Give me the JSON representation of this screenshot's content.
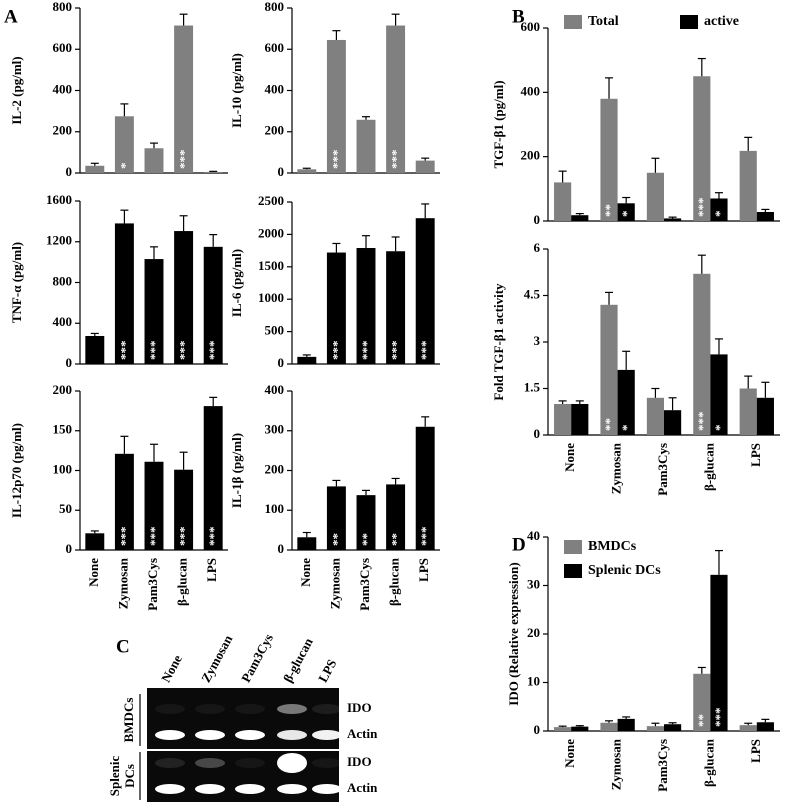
{
  "panel_labels": [
    "A",
    "B",
    "C",
    "D"
  ],
  "chart_data": [
    {
      "type": "bar",
      "ylabel": "IL-2 (pg/ml)",
      "categories": [
        null,
        null,
        null,
        null,
        null
      ],
      "ylim": [
        0,
        800
      ],
      "yticks": [
        0,
        200,
        400,
        600,
        800
      ],
      "series": [
        {
          "color": "#808080",
          "values": [
            35,
            275,
            120,
            715,
            5
          ],
          "errors": [
            12,
            60,
            25,
            55,
            3
          ],
          "stars": [
            null,
            "*",
            null,
            "***",
            null
          ]
        }
      ]
    },
    {
      "type": "bar",
      "ylabel": "IL-10 (pg/ml)",
      "categories": [
        null,
        null,
        null,
        null,
        null
      ],
      "ylim": [
        0,
        800
      ],
      "yticks": [
        0,
        200,
        400,
        600,
        800
      ],
      "series": [
        {
          "color": "#808080",
          "values": [
            18,
            645,
            258,
            715,
            60
          ],
          "errors": [
            5,
            45,
            15,
            55,
            12
          ],
          "stars": [
            null,
            "***",
            null,
            "***",
            null
          ]
        }
      ]
    },
    {
      "type": "bar",
      "ylabel": "TNF-α (pg/ml)",
      "categories": [
        null,
        null,
        null,
        null,
        null
      ],
      "ylim": [
        0,
        1600
      ],
      "yticks": [
        0,
        400,
        800,
        1200,
        1600
      ],
      "series": [
        {
          "color": "#000000",
          "values": [
            275,
            1380,
            1030,
            1305,
            1150
          ],
          "errors": [
            25,
            130,
            120,
            150,
            120
          ],
          "stars": [
            null,
            "***",
            "***",
            "***",
            "***"
          ]
        }
      ]
    },
    {
      "type": "bar",
      "ylabel": "IL-6 (pg/ml)",
      "categories": [
        null,
        null,
        null,
        null,
        null
      ],
      "ylim": [
        0,
        2500
      ],
      "yticks": [
        0,
        500,
        1000,
        1500,
        2000,
        2500
      ],
      "series": [
        {
          "color": "#000000",
          "values": [
            110,
            1720,
            1790,
            1740,
            2250
          ],
          "errors": [
            30,
            140,
            190,
            220,
            220
          ],
          "stars": [
            null,
            "***",
            "***",
            "***",
            "***"
          ]
        }
      ]
    },
    {
      "type": "bar",
      "ylabel": "IL-12p70 (pg/ml)",
      "categories": [
        "None",
        "Zymosan",
        "Pam3Cys",
        "β-glucan",
        "LPS"
      ],
      "ylim": [
        0,
        200
      ],
      "yticks": [
        0,
        50,
        100,
        150,
        200
      ],
      "series": [
        {
          "color": "#000000",
          "values": [
            21,
            121,
            111,
            101,
            181
          ],
          "errors": [
            3,
            22,
            22,
            22,
            11
          ],
          "stars": [
            null,
            "***",
            "***",
            "***",
            "***"
          ]
        }
      ]
    },
    {
      "type": "bar",
      "ylabel": "IL-1β (pg/ml)",
      "categories": [
        "None",
        "Zymosan",
        "Pam3Cys",
        "β-glucan",
        "LPS"
      ],
      "ylim": [
        0,
        400
      ],
      "yticks": [
        0,
        100,
        200,
        300,
        400
      ],
      "series": [
        {
          "color": "#000000",
          "values": [
            32,
            160,
            138,
            165,
            310
          ],
          "errors": [
            12,
            15,
            12,
            15,
            25
          ],
          "stars": [
            null,
            "**",
            "**",
            "**",
            "***"
          ]
        }
      ]
    },
    {
      "type": "bar",
      "ylabel": "TGF-β1 (pg/ml)",
      "categories": [
        null,
        null,
        null,
        null,
        null
      ],
      "ylim": [
        0,
        600
      ],
      "yticks": [
        0,
        200,
        400,
        600
      ],
      "legend": "upper left",
      "legend_columns": 2,
      "series": [
        {
          "name": "Total",
          "color": "#808080",
          "values": [
            120,
            380,
            150,
            450,
            218
          ],
          "errors": [
            35,
            65,
            45,
            55,
            42
          ],
          "stars": [
            null,
            "**",
            null,
            "***",
            null
          ]
        },
        {
          "name": "active",
          "color": "#000000",
          "values": [
            18,
            55,
            8,
            70,
            28
          ],
          "errors": [
            5,
            18,
            4,
            18,
            8
          ],
          "stars": [
            null,
            "*",
            null,
            "*",
            null
          ]
        }
      ]
    },
    {
      "type": "bar",
      "ylabel": "Fold TGF-β1 activity",
      "categories": [
        "None",
        "Zymosan",
        "Pam3Cys",
        "β-glucan",
        "LPS"
      ],
      "ylim": [
        0,
        6
      ],
      "yticks": [
        0,
        1.5,
        3,
        4.5,
        6
      ],
      "series": [
        {
          "color": "#808080",
          "values": [
            1.0,
            4.2,
            1.2,
            5.2,
            1.5
          ],
          "errors": [
            0.1,
            0.4,
            0.3,
            0.6,
            0.4
          ],
          "stars": [
            null,
            "**",
            null,
            "***",
            null
          ]
        },
        {
          "color": "#000000",
          "values": [
            1.0,
            2.1,
            0.8,
            2.6,
            1.2
          ],
          "errors": [
            0.1,
            0.6,
            0.4,
            0.5,
            0.5
          ],
          "stars": [
            null,
            "*",
            null,
            "*",
            null
          ]
        }
      ]
    },
    {
      "type": "bar",
      "ylabel": "IDO (Relative expression)",
      "categories": [
        "None",
        "Zymosan",
        "Pam3Cys",
        "β-glucan",
        "LPS"
      ],
      "ylim": [
        0,
        40
      ],
      "yticks": [
        0,
        10,
        20,
        30,
        40
      ],
      "legend": "upper left",
      "legend_columns": 1,
      "series": [
        {
          "name": "BMDCs",
          "color": "#808080",
          "values": [
            0.8,
            1.7,
            1.0,
            11.8,
            1.2
          ],
          "errors": [
            0.2,
            0.4,
            0.6,
            1.3,
            0.4
          ],
          "stars": [
            null,
            null,
            null,
            "**",
            null
          ]
        },
        {
          "name": "Splenic DCs",
          "color": "#000000",
          "values": [
            0.9,
            2.5,
            1.4,
            32.2,
            1.8
          ],
          "errors": [
            0.2,
            0.4,
            0.3,
            5.0,
            0.6
          ],
          "stars": [
            null,
            null,
            null,
            "***",
            null
          ]
        }
      ]
    }
  ],
  "gel": {
    "lanes": [
      "None",
      "Zymosan",
      "Pam3Cys",
      "β-glucan",
      "LPS"
    ],
    "groups": [
      {
        "cell": [
          "BMDCs"
        ],
        "genes": [
          "IDO",
          "Actin"
        ]
      },
      {
        "cell": [
          "Splenic",
          "DCs"
        ],
        "genes": [
          "IDO",
          "Actin"
        ]
      }
    ]
  }
}
